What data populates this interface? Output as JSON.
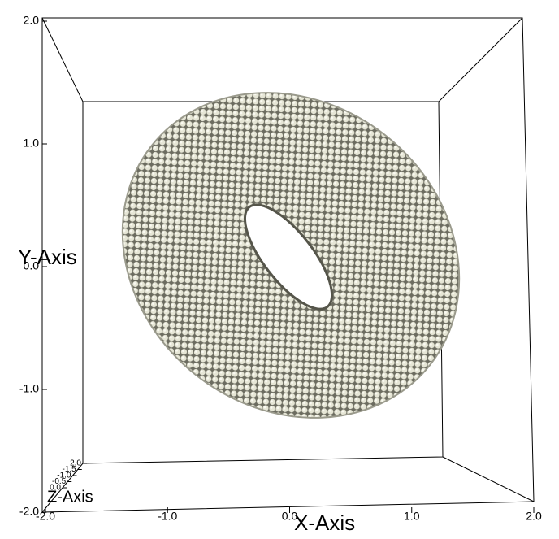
{
  "chart_data": {
    "type": "scatter3d",
    "xlabel": "X-Axis",
    "ylabel": "Y-Axis",
    "zlabel": "Z-Axis",
    "xlim": [
      -2,
      2
    ],
    "ylim": [
      -2,
      2
    ],
    "zlim": [
      -2,
      2
    ],
    "xticks": [
      {
        "value": -2,
        "label": "-2.0"
      },
      {
        "value": -1,
        "label": "-1.0"
      },
      {
        "value": 0,
        "label": "0.0"
      },
      {
        "value": 1,
        "label": "1.0"
      },
      {
        "value": 2,
        "label": "2.0"
      }
    ],
    "yticks": [
      {
        "value": -2,
        "label": "-2.0"
      },
      {
        "value": -1,
        "label": "-1.0"
      },
      {
        "value": 0,
        "label": "0.0"
      },
      {
        "value": 1,
        "label": "1.0"
      },
      {
        "value": 2,
        "label": "2.0"
      }
    ],
    "zticks": [
      {
        "value": -2,
        "label": "-2.0"
      },
      {
        "value": -1.5,
        "label": "-1.5"
      },
      {
        "value": -1,
        "label": "-1.0"
      },
      {
        "value": -0.5,
        "label": "-0.5"
      },
      {
        "value": 0,
        "label": "0.0"
      }
    ],
    "color": "#e6e6d6"
  }
}
